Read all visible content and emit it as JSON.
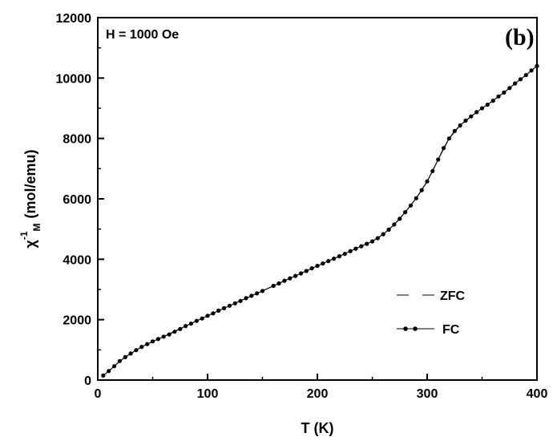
{
  "chart_data": {
    "type": "line",
    "xlabel": "T (K)",
    "ylabel_symbol": "χ",
    "ylabel_superscript": "-1",
    "ylabel_subscript": "M",
    "ylabel_unit": "(mol/emu)",
    "xlim": [
      0,
      400
    ],
    "ylim": [
      0,
      12000
    ],
    "xticks": [
      0,
      100,
      200,
      300,
      400
    ],
    "yticks": [
      0,
      2000,
      4000,
      6000,
      8000,
      10000,
      12000
    ],
    "annotation": "H = 1000 Oe",
    "panel_label": "(b)",
    "grid": false,
    "legend_position": "lower-right",
    "series": [
      {
        "name": "ZFC",
        "style": "line",
        "color": "#000000",
        "x": [
          5,
          10,
          20,
          30,
          40,
          50,
          60,
          80,
          100,
          120,
          140,
          160,
          180,
          200,
          220,
          240,
          250,
          260,
          270,
          280,
          290,
          300,
          310,
          320,
          330,
          340,
          350,
          360,
          370,
          380,
          390,
          400
        ],
        "y": [
          150,
          300,
          630,
          880,
          1100,
          1280,
          1440,
          1790,
          2130,
          2460,
          2790,
          3120,
          3450,
          3780,
          4100,
          4430,
          4590,
          4830,
          5150,
          5560,
          6020,
          6580,
          7300,
          8000,
          8430,
          8730,
          9000,
          9250,
          9520,
          9820,
          10100,
          10400
        ]
      },
      {
        "name": "FC",
        "style": "line-marker",
        "color": "#000000",
        "x": [
          5,
          10,
          15,
          20,
          25,
          30,
          35,
          40,
          45,
          50,
          55,
          60,
          65,
          70,
          75,
          80,
          85,
          90,
          95,
          100,
          105,
          110,
          115,
          120,
          125,
          130,
          135,
          140,
          145,
          150,
          160,
          165,
          170,
          175,
          180,
          185,
          190,
          195,
          200,
          205,
          210,
          215,
          220,
          225,
          230,
          235,
          240,
          245,
          250,
          255,
          260,
          265,
          270,
          275,
          280,
          285,
          290,
          295,
          300,
          305,
          310,
          315,
          320,
          325,
          330,
          335,
          340,
          345,
          350,
          355,
          360,
          365,
          370,
          375,
          380,
          385,
          390,
          395,
          400
        ],
        "y": [
          150,
          300,
          460,
          630,
          760,
          880,
          990,
          1100,
          1190,
          1280,
          1360,
          1440,
          1510,
          1600,
          1690,
          1790,
          1870,
          1960,
          2040,
          2130,
          2210,
          2300,
          2380,
          2460,
          2540,
          2620,
          2710,
          2790,
          2870,
          2950,
          3120,
          3200,
          3290,
          3370,
          3450,
          3530,
          3610,
          3700,
          3780,
          3860,
          3940,
          4020,
          4100,
          4180,
          4270,
          4350,
          4430,
          4510,
          4590,
          4700,
          4830,
          4980,
          5150,
          5340,
          5560,
          5780,
          6020,
          6290,
          6580,
          6920,
          7300,
          7680,
          8000,
          8250,
          8430,
          8590,
          8730,
          8870,
          9000,
          9120,
          9250,
          9390,
          9520,
          9670,
          9820,
          9960,
          10100,
          10250,
          10400
        ]
      }
    ]
  }
}
